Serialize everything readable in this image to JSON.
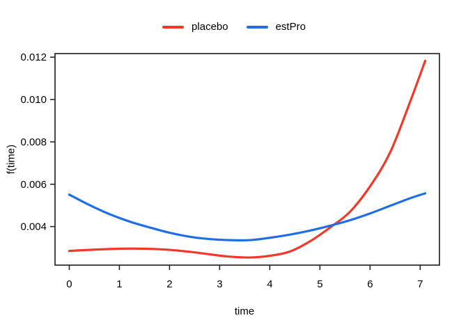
{
  "colors": {
    "background": "#ffffff",
    "axis": "#1a1a1a",
    "text": "#000000",
    "placebo_red": "#f2382b",
    "estpro_blue": "#1e6ee6"
  },
  "legend": {
    "items": [
      {
        "label": "placebo",
        "color": "#f2382b"
      },
      {
        "label": "estPro",
        "color": "#1e6ee6"
      }
    ]
  },
  "chart_data": {
    "type": "line",
    "title": "",
    "xlabel": "time",
    "ylabel": "f(time)",
    "xlim": [
      -0.284,
      7.384
    ],
    "ylim": [
      0.00218,
      0.01217
    ],
    "grid": false,
    "legend_position": "top-center",
    "x_ticks": {
      "values": [
        0,
        1,
        2,
        3,
        4,
        5,
        6,
        7
      ],
      "labels": [
        "0",
        "1",
        "2",
        "3",
        "4",
        "5",
        "6",
        "7"
      ]
    },
    "y_ticks": {
      "values": [
        0.004,
        0.006,
        0.008,
        0.01,
        0.012
      ],
      "labels": [
        "0.004",
        "0.006",
        "0.008",
        "0.010",
        "0.012"
      ]
    },
    "series": [
      {
        "name": "placebo",
        "color": "#f2382b",
        "line_width": 3.2,
        "x": [
          0,
          0.4,
          0.8,
          1.2,
          1.6,
          2.0,
          2.4,
          2.8,
          3.2,
          3.6,
          4.0,
          4.4,
          4.8,
          5.2,
          5.6,
          6.0,
          6.4,
          6.8,
          7.1
        ],
        "y": [
          0.00285,
          0.0029,
          0.00294,
          0.00296,
          0.00295,
          0.0029,
          0.00281,
          0.00269,
          0.00258,
          0.00254,
          0.00262,
          0.00282,
          0.0033,
          0.00395,
          0.0047,
          0.0059,
          0.0075,
          0.0099,
          0.01183
        ]
      },
      {
        "name": "estPro",
        "color": "#1e6ee6",
        "line_width": 3.2,
        "x": [
          0,
          0.4,
          0.8,
          1.2,
          1.6,
          2.0,
          2.4,
          2.8,
          3.2,
          3.6,
          4.0,
          4.4,
          4.8,
          5.2,
          5.6,
          6.0,
          6.4,
          6.8,
          7.1
        ],
        "y": [
          0.00551,
          0.00502,
          0.00459,
          0.00424,
          0.00396,
          0.00371,
          0.00352,
          0.00341,
          0.00336,
          0.00336,
          0.00347,
          0.00362,
          0.00381,
          0.00404,
          0.0043,
          0.00462,
          0.00498,
          0.00534,
          0.00557
        ]
      }
    ]
  }
}
